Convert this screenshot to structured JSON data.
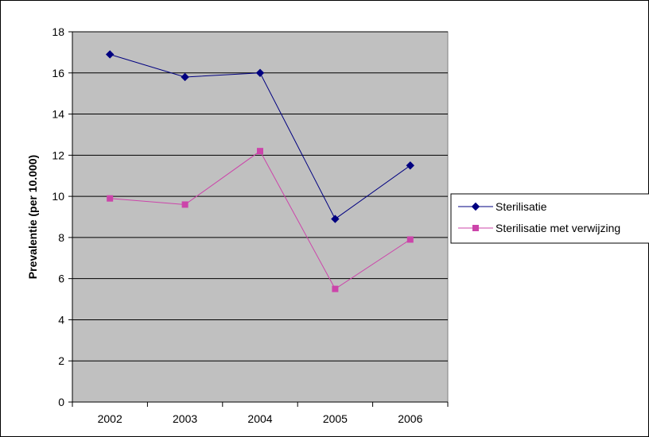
{
  "chart_data": {
    "type": "line",
    "title": "",
    "xlabel": "",
    "ylabel": "Prevalentie (per 10.000)",
    "categories": [
      "2002",
      "2003",
      "2004",
      "2005",
      "2006"
    ],
    "ylim": [
      0,
      18
    ],
    "yticks": [
      "0",
      "2",
      "4",
      "6",
      "8",
      "10",
      "12",
      "14",
      "16",
      "18"
    ],
    "grid": true,
    "legend_position": "right",
    "plot_background": "#c0c0c0",
    "series": [
      {
        "name": "Sterilisatie",
        "values": [
          16.9,
          15.8,
          16.0,
          8.9,
          11.5
        ],
        "color": "#000080",
        "marker": "diamond"
      },
      {
        "name": "Sterilisatie met verwijzing",
        "values": [
          9.9,
          9.6,
          12.2,
          5.5,
          7.9
        ],
        "color": "#cc44aa",
        "marker": "square"
      }
    ]
  }
}
